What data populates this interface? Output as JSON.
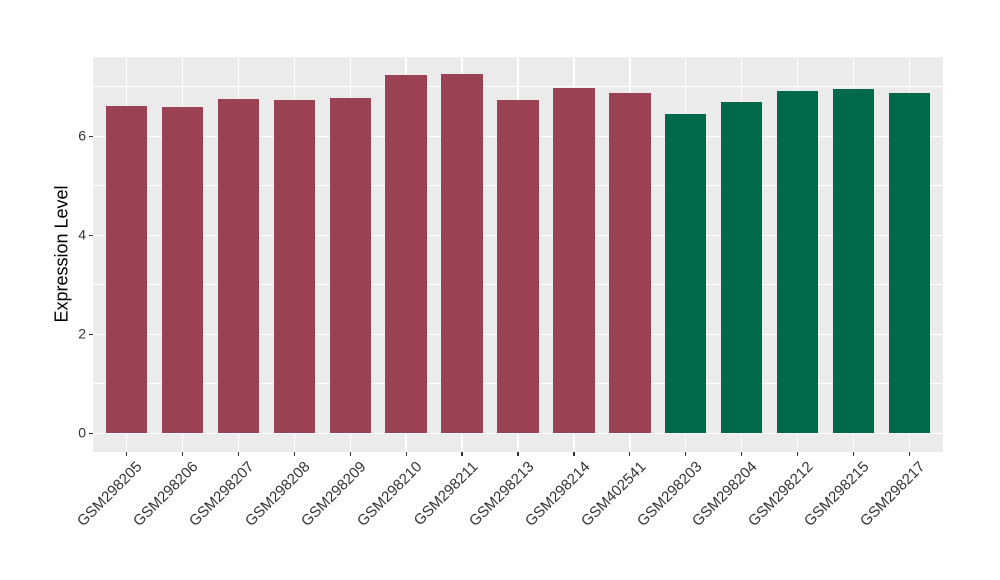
{
  "chart_data": {
    "type": "bar",
    "title": "",
    "xlabel": "",
    "ylabel": "Expression Level",
    "categories": [
      "GSM298205",
      "GSM298206",
      "GSM298207",
      "GSM298208",
      "GSM298209",
      "GSM298210",
      "GSM298211",
      "GSM298213",
      "GSM298214",
      "GSM402541",
      "GSM298203",
      "GSM298204",
      "GSM298212",
      "GSM298215",
      "GSM298217"
    ],
    "values": [
      6.61,
      6.6,
      6.76,
      6.74,
      6.77,
      7.23,
      7.25,
      6.73,
      6.97,
      6.87,
      6.46,
      6.69,
      6.92,
      6.96,
      6.88
    ],
    "bar_colors": [
      "#9A4252",
      "#9A4252",
      "#9A4252",
      "#9A4252",
      "#9A4252",
      "#9A4252",
      "#9A4252",
      "#9A4252",
      "#9A4252",
      "#9A4252",
      "#00694B",
      "#00694B",
      "#00694B",
      "#00694B",
      "#00694B"
    ],
    "y_axis": {
      "tick_labels": [
        "0",
        "2",
        "4",
        "6"
      ],
      "ticks": [
        0,
        2,
        4,
        6
      ],
      "minor_ticks": [
        1,
        3,
        5,
        7
      ],
      "range_display": [
        -0.37,
        7.63
      ]
    },
    "grid": true,
    "legend": false,
    "colors": {
      "bar_red": "#9A4252",
      "bar_green": "#00694B",
      "panel_background": "#EBEBEB",
      "gridline": "#FFFFFF",
      "axis_text": "#333333",
      "axis_title": "#000000",
      "tick_mark": "#333333",
      "outer_background": "#FFFFFF"
    }
  }
}
